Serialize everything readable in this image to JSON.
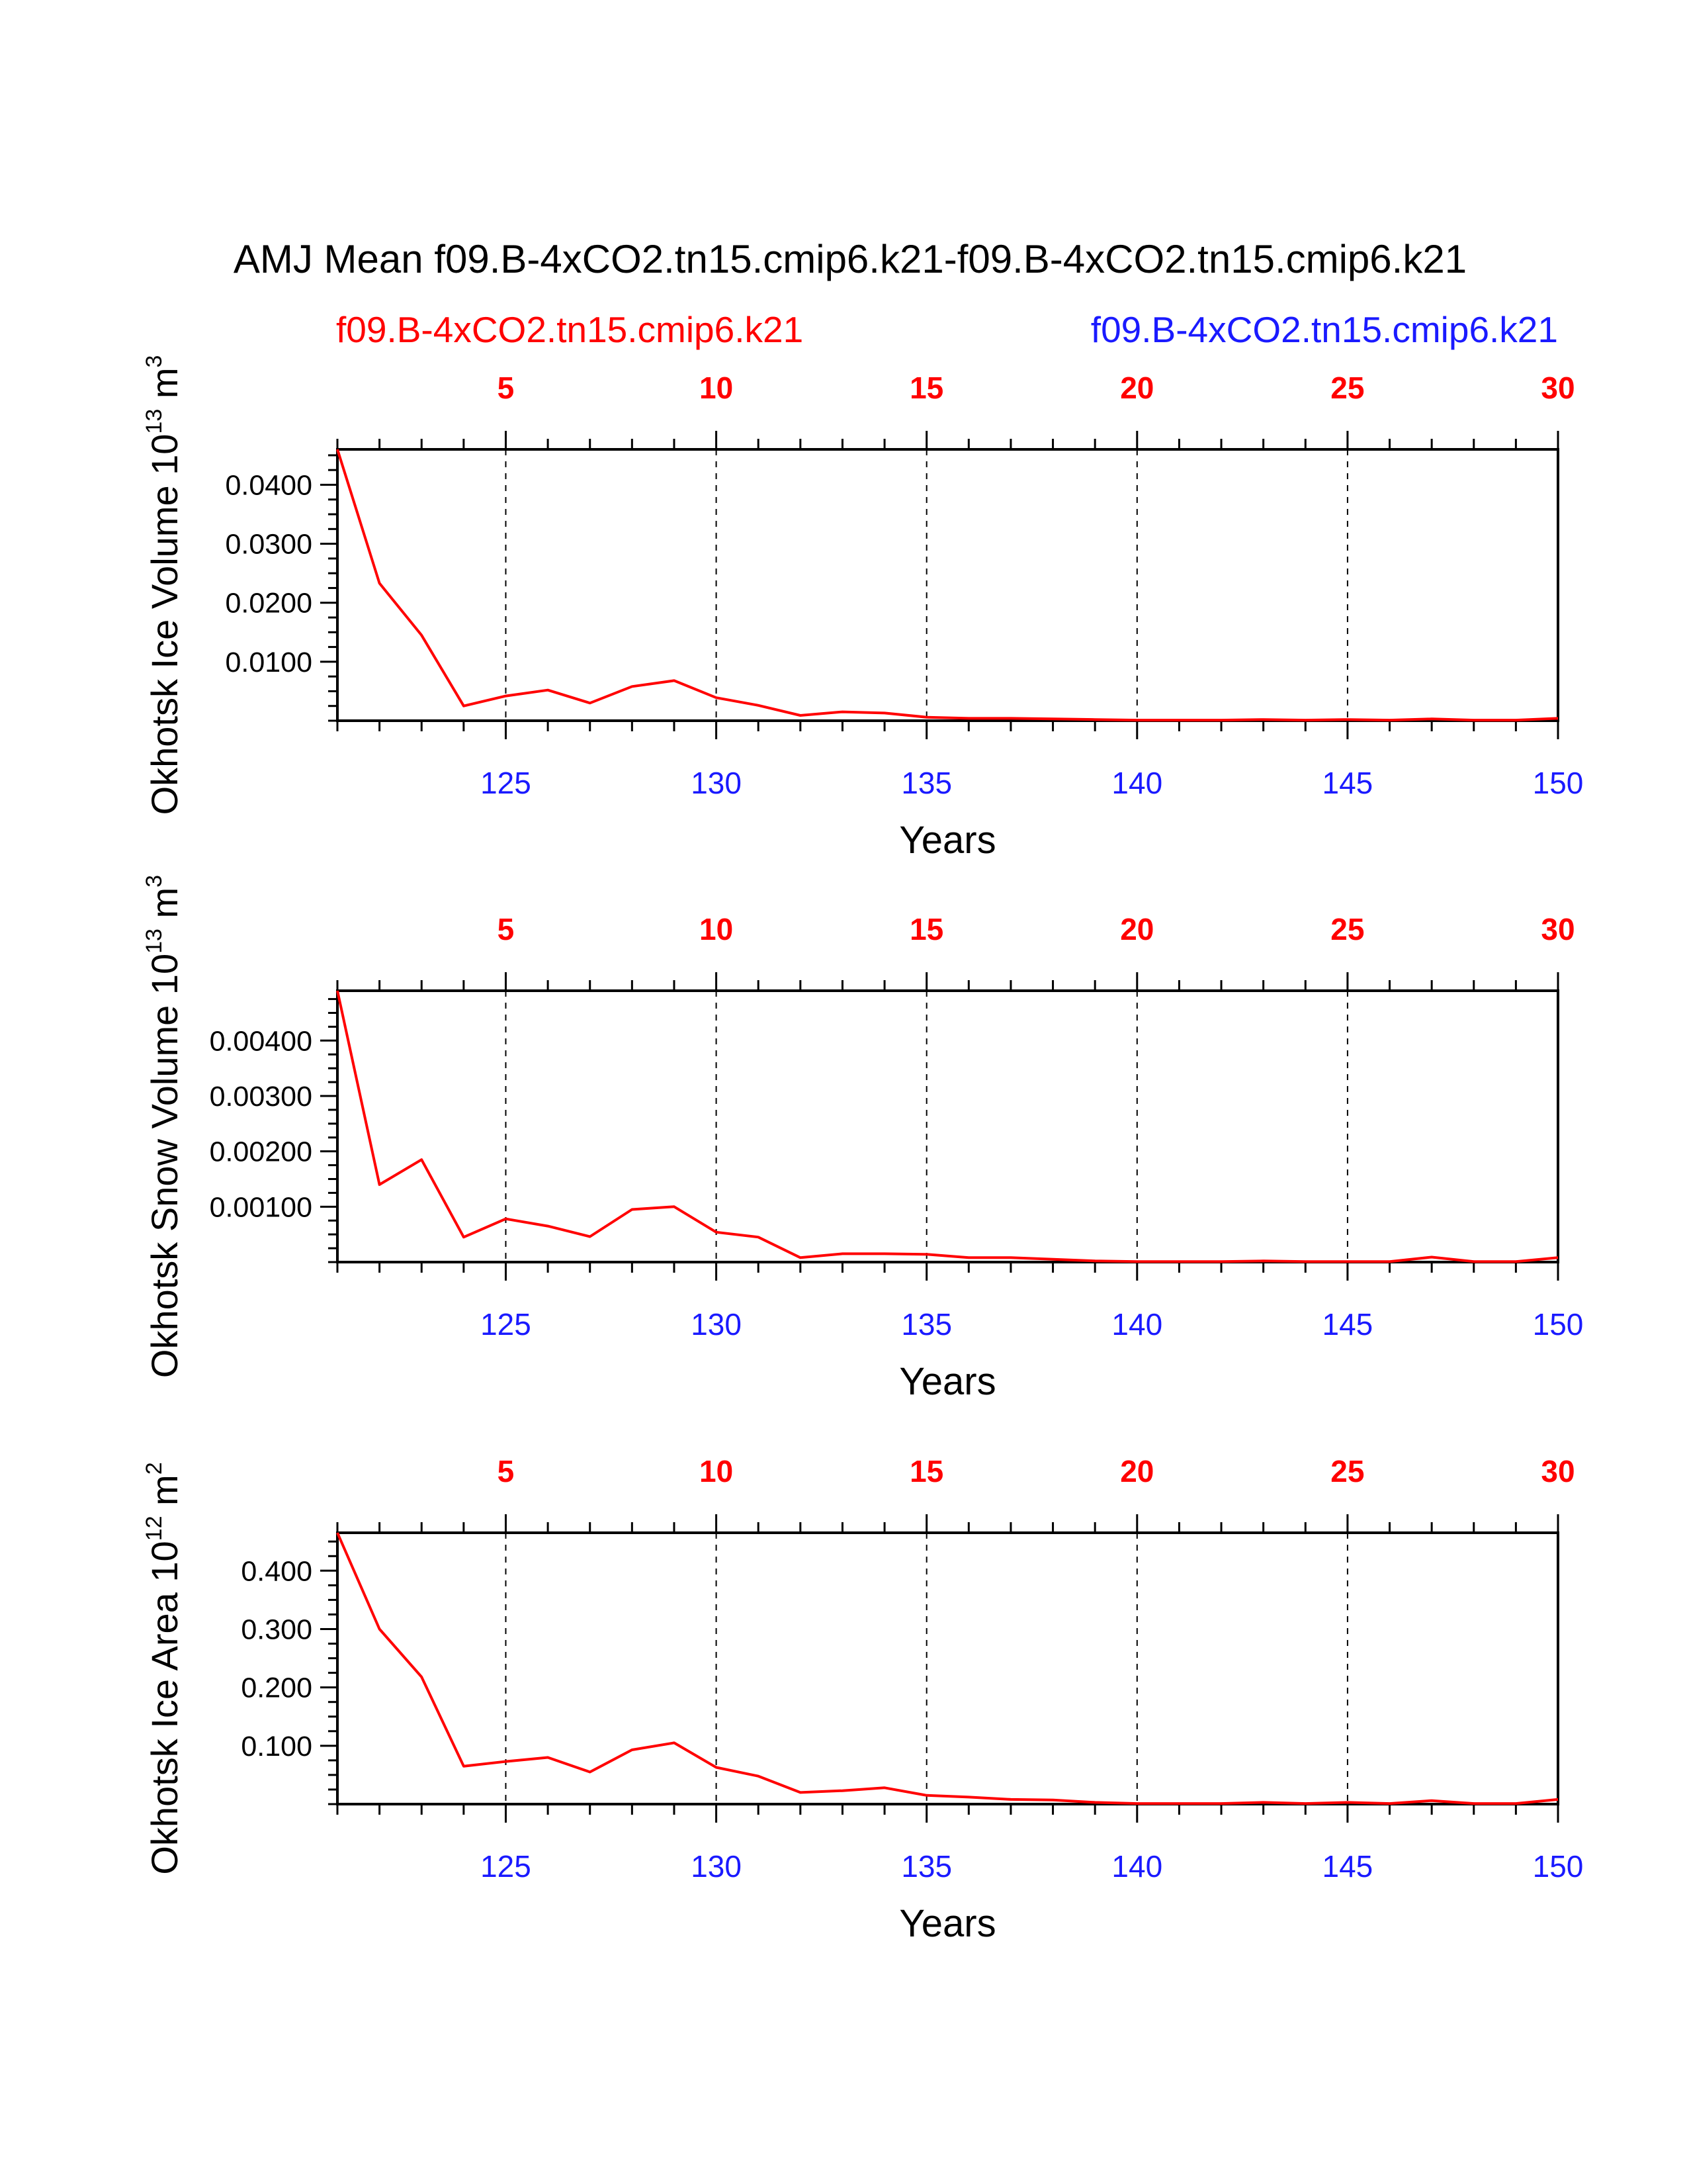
{
  "colors": {
    "series": "#ff0000",
    "bottom_axis": "#1a1aff",
    "top_axis": "#ff0000",
    "grid": "#000000"
  },
  "figure": {
    "title": "AMJ Mean f09.B-4xCO2.tn15.cmip6.k21-f09.B-4xCO2.tn15.cmip6.k21",
    "left_subtitle": "f09.B-4xCO2.tn15.cmip6.k21",
    "right_subtitle": "f09.B-4xCO2.tn15.cmip6.k21"
  },
  "chart_data": [
    {
      "type": "line",
      "title": "AMJ Mean f09.B-4xCO2.tn15.cmip6.k21-f09.B-4xCO2.tn15.cmip6.k21",
      "ylabel_main": "Okhotsk Ice Volume 10",
      "ylabel_exp": "13",
      "ylabel_unit": " m",
      "ylabel_unit_exp": "3",
      "xlabel": "Years",
      "xlim": [
        121,
        150
      ],
      "ylim": [
        0,
        0.046
      ],
      "yticks": [
        0.01,
        0.02,
        0.03,
        0.04
      ],
      "yticklabels": [
        "0.0100",
        "0.0200",
        "0.0300",
        "0.0400"
      ],
      "xticks_bottom": [
        "125",
        "130",
        "135",
        "140",
        "145",
        "150"
      ],
      "xticks_top": [
        "5",
        "10",
        "15",
        "20",
        "25",
        "30"
      ],
      "x": [
        121,
        122,
        123,
        124,
        125,
        126,
        127,
        128,
        129,
        130,
        131,
        132,
        133,
        134,
        135,
        136,
        137,
        138,
        139,
        140,
        141,
        142,
        143,
        144,
        145,
        146,
        147,
        148,
        149,
        150
      ],
      "series": [
        {
          "name": "f09.B-4xCO2.tn15.cmip6.k21",
          "values": [
            0.046,
            0.0233,
            0.0145,
            0.0025,
            0.0042,
            0.0052,
            0.003,
            0.0058,
            0.0068,
            0.0039,
            0.0026,
            0.0009,
            0.0015,
            0.0013,
            0.0006,
            0.0004,
            0.0004,
            0.0003,
            0.0002,
            0.0001,
            0.0001,
            0.0001,
            0.0002,
            0.0001,
            0.0002,
            0.0001,
            0.0003,
            0.0001,
            0.0001,
            0.0004
          ]
        }
      ]
    },
    {
      "type": "line",
      "ylabel_main": "Okhotsk Snow Volume 10",
      "ylabel_exp": "13",
      "ylabel_unit": " m",
      "ylabel_unit_exp": "3",
      "xlabel": "Years",
      "xlim": [
        121,
        150
      ],
      "ylim": [
        0,
        0.0049
      ],
      "yticks": [
        0.001,
        0.002,
        0.003,
        0.004
      ],
      "yticklabels": [
        "0.00100",
        "0.00200",
        "0.00300",
        "0.00400"
      ],
      "xticks_bottom": [
        "125",
        "130",
        "135",
        "140",
        "145",
        "150"
      ],
      "xticks_top": [
        "5",
        "10",
        "15",
        "20",
        "25",
        "30"
      ],
      "x": [
        121,
        122,
        123,
        124,
        125,
        126,
        127,
        128,
        129,
        130,
        131,
        132,
        133,
        134,
        135,
        136,
        137,
        138,
        139,
        140,
        141,
        142,
        143,
        144,
        145,
        146,
        147,
        148,
        149,
        150
      ],
      "series": [
        {
          "name": "f09.B-4xCO2.tn15.cmip6.k21",
          "values": [
            0.0049,
            0.0014,
            0.00185,
            0.00045,
            0.00078,
            0.00065,
            0.00046,
            0.00095,
            0.001,
            0.00054,
            0.00045,
            8e-05,
            0.00015,
            0.00015,
            0.00014,
            8e-05,
            8e-05,
            5e-05,
            2e-05,
            1e-05,
            1e-05,
            1e-05,
            2e-05,
            1e-05,
            1e-05,
            1e-05,
            9e-05,
            1e-05,
            1e-05,
            8e-05
          ]
        }
      ]
    },
    {
      "type": "line",
      "ylabel_main": "Okhotsk Ice Area 10",
      "ylabel_exp": "12",
      "ylabel_unit": " m",
      "ylabel_unit_exp": "2",
      "xlabel": "Years",
      "xlim": [
        121,
        150
      ],
      "ylim": [
        0,
        0.465
      ],
      "yticks": [
        0.1,
        0.2,
        0.3,
        0.4
      ],
      "yticklabels": [
        "0.100",
        "0.200",
        "0.300",
        "0.400"
      ],
      "xticks_bottom": [
        "125",
        "130",
        "135",
        "140",
        "145",
        "150"
      ],
      "xticks_top": [
        "5",
        "10",
        "15",
        "20",
        "25",
        "30"
      ],
      "x": [
        121,
        122,
        123,
        124,
        125,
        126,
        127,
        128,
        129,
        130,
        131,
        132,
        133,
        134,
        135,
        136,
        137,
        138,
        139,
        140,
        141,
        142,
        143,
        144,
        145,
        146,
        147,
        148,
        149,
        150
      ],
      "series": [
        {
          "name": "f09.B-4xCO2.tn15.cmip6.k21",
          "values": [
            0.465,
            0.3,
            0.218,
            0.065,
            0.073,
            0.08,
            0.055,
            0.093,
            0.105,
            0.063,
            0.048,
            0.02,
            0.023,
            0.028,
            0.015,
            0.012,
            0.008,
            0.007,
            0.003,
            0.001,
            0.001,
            0.001,
            0.003,
            0.001,
            0.003,
            0.001,
            0.006,
            0.001,
            0.001,
            0.008
          ]
        }
      ]
    }
  ]
}
